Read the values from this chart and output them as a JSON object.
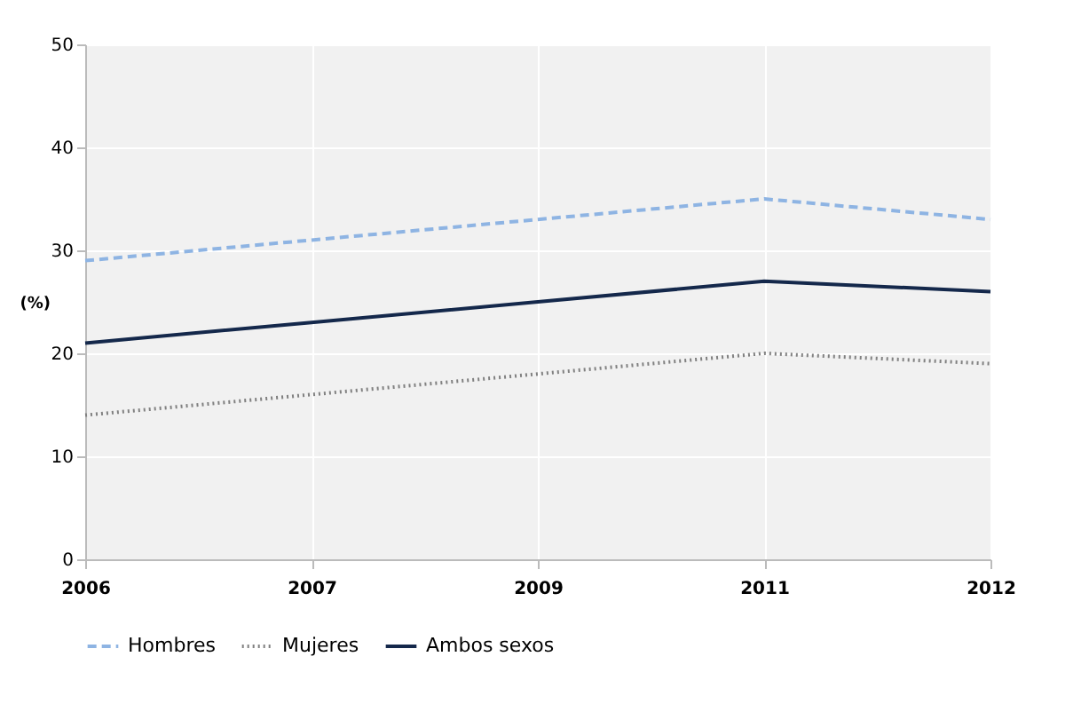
{
  "chart_data": {
    "type": "line",
    "ylabel": "(%)",
    "categories": [
      "2006",
      "2007",
      "2009",
      "2011",
      "2012"
    ],
    "series": [
      {
        "name": "Hombres",
        "color": "#8eb4e3",
        "line_style": "dashed",
        "values": [
          29,
          31,
          33,
          35,
          33
        ]
      },
      {
        "name": "Mujeres",
        "color": "#808080",
        "line_style": "dotted",
        "values": [
          14,
          16,
          18,
          20,
          19
        ]
      },
      {
        "name": "Ambos sexos",
        "color": "#14284b",
        "line_style": "solid",
        "values": [
          21,
          23,
          25,
          27,
          26
        ]
      }
    ],
    "ylim": [
      0,
      50
    ],
    "yticks": [
      0,
      10,
      20,
      30,
      40,
      50
    ],
    "grid": true,
    "legend": "bottom",
    "marker": "none"
  }
}
